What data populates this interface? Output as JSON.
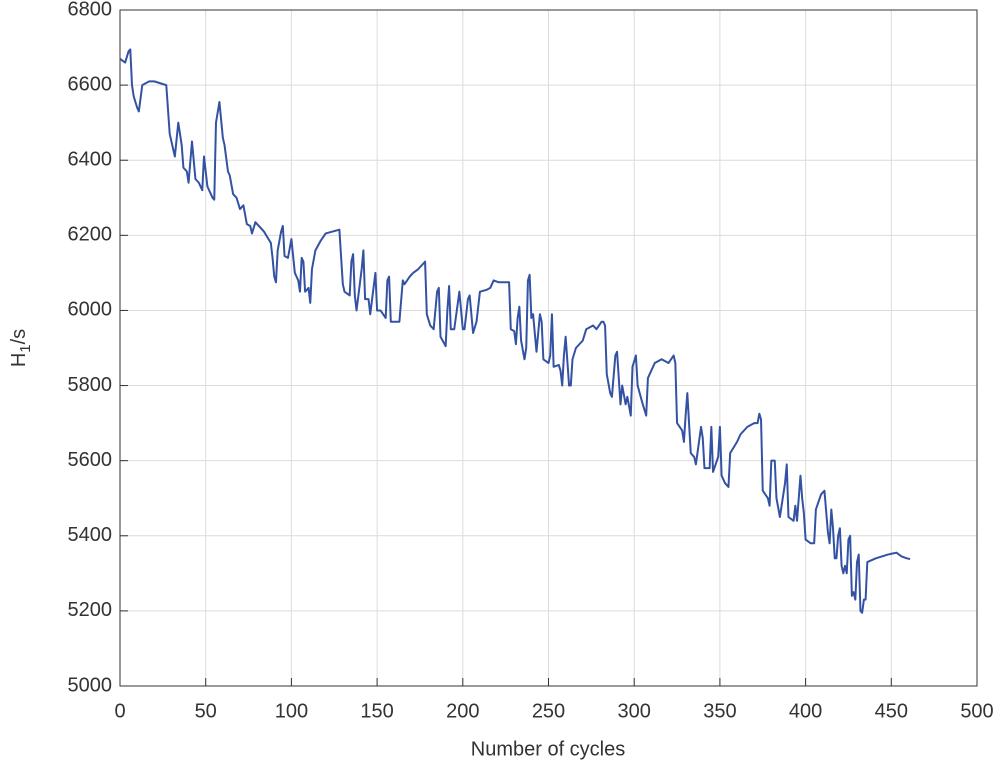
{
  "chart_data": {
    "type": "line",
    "xlabel": "Number of cycles",
    "ylabel": [
      "H",
      "1",
      "/s"
    ],
    "xlim": [
      0,
      500
    ],
    "xticks": [
      0,
      50,
      100,
      150,
      200,
      250,
      300,
      350,
      400,
      450,
      500
    ],
    "ylim": [
      5000,
      6800
    ],
    "yticks": [
      5000,
      5200,
      5400,
      5600,
      5800,
      6000,
      6200,
      6400,
      6600,
      6800
    ],
    "grid": true,
    "series": [
      {
        "color": "#3452a3",
        "x": [
          0,
          3,
          5,
          6,
          7,
          8,
          10,
          11,
          13,
          17,
          20,
          27,
          29,
          32,
          34,
          36,
          37,
          39,
          40,
          42,
          44,
          46,
          48,
          49,
          51,
          54,
          55,
          56,
          58,
          60,
          61,
          63,
          64,
          66,
          68,
          70,
          72,
          74,
          76,
          77,
          79,
          82,
          84,
          86,
          88,
          89,
          90,
          91,
          92,
          94,
          95,
          96,
          98,
          100,
          102,
          104,
          105,
          106,
          107,
          108,
          110,
          111,
          112,
          114,
          117,
          120,
          124,
          128,
          130,
          131,
          134,
          135,
          136,
          137,
          138,
          141,
          142,
          143,
          145,
          146,
          149,
          150,
          152,
          155,
          156,
          157,
          158,
          160,
          163,
          165,
          166,
          169,
          171,
          174,
          176,
          178,
          179,
          181,
          183,
          185,
          186,
          187,
          190,
          191,
          192,
          193,
          195,
          198,
          200,
          201,
          203,
          204,
          206,
          208,
          210,
          214,
          216,
          218,
          221,
          223,
          227,
          228,
          230,
          231,
          232,
          233,
          234,
          236,
          237,
          238,
          239,
          240,
          241,
          243,
          245,
          246,
          247,
          250,
          251,
          252,
          253,
          256,
          257,
          258,
          259,
          260,
          262,
          263,
          264,
          266,
          270,
          272,
          276,
          278,
          281,
          282,
          283,
          284,
          286,
          287,
          289,
          290,
          292,
          293,
          295,
          296,
          298,
          299,
          301,
          302,
          305,
          307,
          308,
          312,
          316,
          320,
          323,
          324,
          325,
          328,
          329,
          330,
          331,
          333,
          335,
          336,
          339,
          340,
          341,
          344,
          345,
          346,
          349,
          350,
          351,
          353,
          355,
          356,
          360,
          362,
          366,
          370,
          372,
          373,
          374,
          375,
          378,
          379,
          380,
          382,
          383,
          385,
          388,
          389,
          390,
          393,
          394,
          395,
          397,
          398,
          399,
          400,
          403,
          405,
          406,
          409,
          411,
          413,
          414,
          415,
          416,
          417,
          418,
          419,
          420,
          421,
          422,
          423,
          424,
          425,
          426,
          427,
          428,
          429,
          430,
          431,
          432,
          433,
          434,
          435,
          436,
          441,
          448,
          453,
          456,
          459,
          461
        ],
        "values": [
          6670,
          6660,
          6690,
          6695,
          6600,
          6570,
          6540,
          6530,
          6600,
          6610,
          6610,
          6600,
          6470,
          6410,
          6500,
          6440,
          6380,
          6370,
          6340,
          6450,
          6350,
          6340,
          6320,
          6410,
          6330,
          6300,
          6295,
          6500,
          6555,
          6460,
          6440,
          6370,
          6360,
          6310,
          6300,
          6270,
          6280,
          6230,
          6225,
          6205,
          6235,
          6220,
          6210,
          6195,
          6180,
          6140,
          6090,
          6075,
          6160,
          6210,
          6225,
          6145,
          6140,
          6190,
          6100,
          6080,
          6050,
          6140,
          6130,
          6050,
          6060,
          6020,
          6110,
          6160,
          6185,
          6205,
          6210,
          6215,
          6070,
          6050,
          6040,
          6130,
          6150,
          6040,
          6000,
          6110,
          6160,
          6030,
          6030,
          5990,
          6100,
          6000,
          6000,
          5980,
          6080,
          6090,
          5970,
          5970,
          5970,
          6080,
          6070,
          6090,
          6100,
          6110,
          6120,
          6130,
          5990,
          5960,
          5950,
          6050,
          6060,
          5930,
          5905,
          6000,
          6065,
          5950,
          5950,
          6050,
          5950,
          5950,
          6030,
          6040,
          5940,
          5970,
          6050,
          6055,
          6060,
          6080,
          6075,
          6075,
          6075,
          5950,
          5945,
          5910,
          5980,
          6010,
          5920,
          5870,
          5900,
          6080,
          6095,
          5980,
          5990,
          5890,
          5990,
          5970,
          5870,
          5860,
          5880,
          5990,
          5850,
          5855,
          5840,
          5800,
          5880,
          5930,
          5800,
          5800,
          5870,
          5900,
          5920,
          5950,
          5960,
          5950,
          5970,
          5970,
          5960,
          5830,
          5780,
          5770,
          5880,
          5890,
          5750,
          5800,
          5750,
          5770,
          5720,
          5850,
          5880,
          5800,
          5750,
          5720,
          5820,
          5860,
          5870,
          5860,
          5880,
          5860,
          5700,
          5680,
          5650,
          5720,
          5780,
          5620,
          5610,
          5590,
          5690,
          5660,
          5580,
          5580,
          5690,
          5570,
          5610,
          5690,
          5560,
          5540,
          5530,
          5620,
          5650,
          5670,
          5690,
          5700,
          5700,
          5725,
          5710,
          5520,
          5500,
          5480,
          5600,
          5600,
          5500,
          5450,
          5540,
          5590,
          5450,
          5440,
          5480,
          5440,
          5560,
          5500,
          5460,
          5390,
          5380,
          5380,
          5470,
          5510,
          5520,
          5410,
          5380,
          5470,
          5420,
          5340,
          5340,
          5400,
          5420,
          5320,
          5300,
          5320,
          5300,
          5390,
          5400,
          5240,
          5250,
          5230,
          5330,
          5350,
          5200,
          5195,
          5230,
          5230,
          5330,
          5340,
          5350,
          5355,
          5345,
          5340,
          5338
        ]
      }
    ]
  }
}
